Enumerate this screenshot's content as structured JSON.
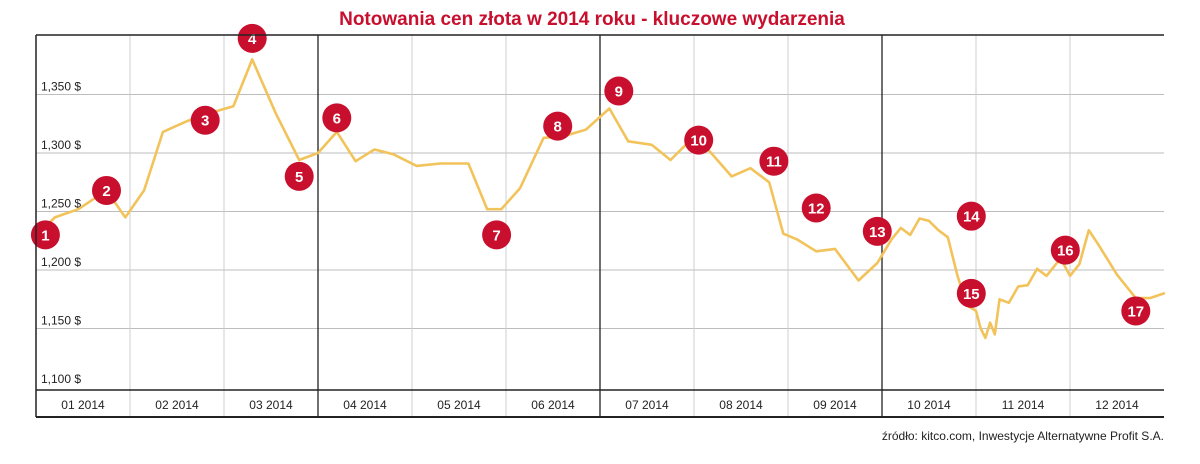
{
  "chart_data": {
    "type": "line",
    "title": "Notowania cen złota w 2014 roku - kluczowe wydarzenia",
    "source": "źródło: kitco.com, Inwestycje Alternatywne Profit S.A.",
    "xlabel": "",
    "ylabel": "",
    "xlim": [
      0,
      12
    ],
    "ylim": [
      1100,
      1400
    ],
    "y_ticks": [
      1100,
      1150,
      1200,
      1250,
      1300,
      1350
    ],
    "y_tick_labels": [
      "1,100 $",
      "1,150 $",
      "1,200 $",
      "1,250 $",
      "1,300 $",
      "1,350 $"
    ],
    "x_labels": [
      "01 2014",
      "02 2014",
      "03 2014",
      "04 2014",
      "05 2014",
      "06 2014",
      "07 2014",
      "08 2014",
      "09 2014",
      "10 2014",
      "11 2014",
      "12 2014"
    ],
    "grid": true,
    "colors": {
      "line": "#f2c35a",
      "marker": "#c8102e",
      "title": "#c8102e",
      "grid": "#bdbdbd",
      "axis": "#222222"
    },
    "series": [
      {
        "x": [
          0,
          0.2,
          0.45,
          0.75,
          0.95,
          1.15,
          1.35,
          1.6,
          1.8,
          2.1,
          2.3,
          2.55,
          2.8,
          3.0,
          3.2,
          3.4,
          3.6,
          3.8,
          4.05,
          4.3,
          4.6,
          4.8,
          4.95,
          5.15,
          5.4,
          5.6,
          5.85,
          6.1,
          6.3,
          6.55,
          6.75,
          6.95,
          7.15,
          7.4,
          7.6,
          7.8,
          7.95,
          8.1,
          8.3,
          8.5,
          8.75,
          8.95,
          9.1,
          9.2,
          9.3,
          9.4,
          9.5,
          9.6,
          9.7,
          9.8,
          9.9,
          10.0,
          10.05,
          10.1,
          10.15,
          10.2,
          10.25,
          10.35,
          10.45,
          10.55,
          10.65,
          10.75,
          10.9,
          11.0,
          11.1,
          11.2,
          11.3,
          11.5,
          11.7,
          11.85,
          12.0
        ],
        "values": [
          1229,
          1245,
          1252,
          1268,
          1245,
          1268,
          1318,
          1327,
          1333,
          1340,
          1380,
          1334,
          1294,
          1300,
          1318,
          1293,
          1303,
          1299,
          1289,
          1291,
          1291,
          1252,
          1252,
          1270,
          1313,
          1314,
          1320,
          1338,
          1310,
          1307,
          1294,
          1310,
          1303,
          1280,
          1287,
          1275,
          1231,
          1226,
          1216,
          1218,
          1191,
          1206,
          1226,
          1236,
          1230,
          1244,
          1242,
          1234,
          1228,
          1196,
          1170,
          1165,
          1150,
          1142,
          1155,
          1145,
          1175,
          1172,
          1186,
          1187,
          1201,
          1195,
          1210,
          1195,
          1205,
          1234,
          1222,
          1196,
          1176,
          1176,
          1180
        ]
      }
    ],
    "markers": [
      {
        "label": "1",
        "x": 0.1,
        "y": 1230
      },
      {
        "label": "2",
        "x": 0.75,
        "y": 1268
      },
      {
        "label": "3",
        "x": 1.8,
        "y": 1328
      },
      {
        "label": "4",
        "x": 2.3,
        "y": 1398
      },
      {
        "label": "5",
        "x": 2.8,
        "y": 1280
      },
      {
        "label": "6",
        "x": 3.2,
        "y": 1330
      },
      {
        "label": "7",
        "x": 4.9,
        "y": 1230
      },
      {
        "label": "8",
        "x": 5.55,
        "y": 1323
      },
      {
        "label": "9",
        "x": 6.2,
        "y": 1353
      },
      {
        "label": "10",
        "x": 7.05,
        "y": 1311
      },
      {
        "label": "11",
        "x": 7.85,
        "y": 1293
      },
      {
        "label": "12",
        "x": 8.3,
        "y": 1253
      },
      {
        "label": "13",
        "x": 8.95,
        "y": 1233
      },
      {
        "label": "14",
        "x": 9.95,
        "y": 1246
      },
      {
        "label": "15",
        "x": 9.95,
        "y": 1180
      },
      {
        "label": "16",
        "x": 10.95,
        "y": 1217
      },
      {
        "label": "17",
        "x": 11.7,
        "y": 1165
      }
    ]
  }
}
